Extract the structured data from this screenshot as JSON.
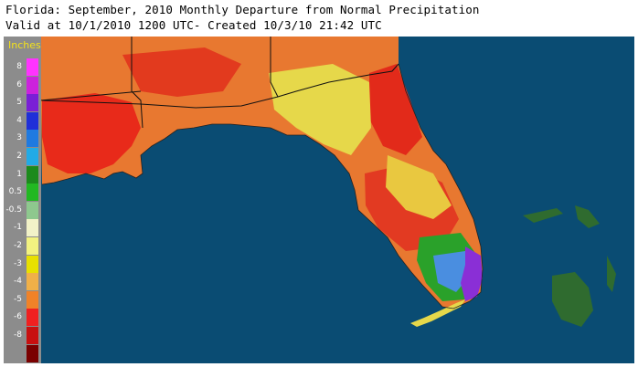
{
  "title": {
    "line1": "Florida: September, 2010 Monthly Departure from Normal Precipitation",
    "line2": "Valid at 10/1/2010 1200 UTC- Created 10/3/10 21:42 UTC"
  },
  "legend": {
    "unit": "Inches",
    "items": [
      {
        "label": "8",
        "color": "#ff33ff"
      },
      {
        "label": "6",
        "color": "#cc22dd"
      },
      {
        "label": "5",
        "color": "#7a1fd6"
      },
      {
        "label": "4",
        "color": "#1f2fd8"
      },
      {
        "label": "3",
        "color": "#1f7ae0"
      },
      {
        "label": "2",
        "color": "#22aae6"
      },
      {
        "label": "1",
        "color": "#1c8a1c"
      },
      {
        "label": "0.5",
        "color": "#22b822"
      },
      {
        "label": "-0.5",
        "color": "#8ec88e"
      },
      {
        "label": "-1",
        "color": "#f2f2c8"
      },
      {
        "label": "-2",
        "color": "#f2f280"
      },
      {
        "label": "-3",
        "color": "#e8e000"
      },
      {
        "label": "-4",
        "color": "#f0b048"
      },
      {
        "label": "-5",
        "color": "#f08228"
      },
      {
        "label": "-6",
        "color": "#f02020"
      },
      {
        "label": "-8",
        "color": "#c81010"
      },
      {
        "label": "",
        "color": "#7a0000"
      }
    ]
  },
  "colors": {
    "ocean": "#0a4c73",
    "land_dry": "#e85a28",
    "land_moderate": "#e8a03c",
    "land_near_normal": "#e6d84a",
    "land_wet": "#2aa12a",
    "land_very_wet": "#8a2fd6",
    "bahamas": "#2f6b2f",
    "boundaries": "#111111"
  }
}
